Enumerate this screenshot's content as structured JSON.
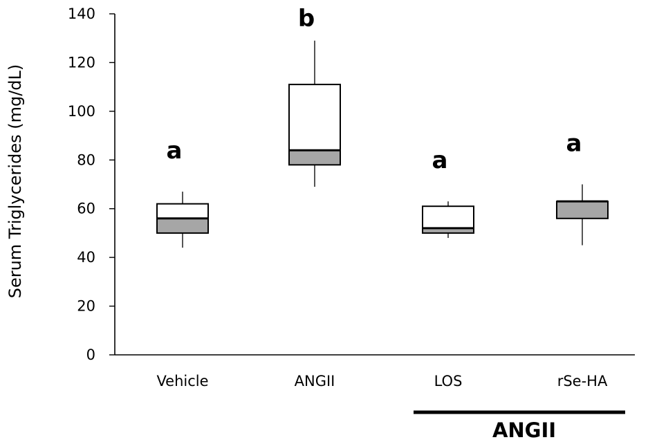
{
  "chart_data": {
    "type": "box",
    "ylabel": "Serum Triglycerides  (mg/dL)",
    "ylim": [
      0,
      140
    ],
    "yticks": [
      0,
      20,
      40,
      60,
      80,
      100,
      120,
      140
    ],
    "grid": false,
    "categories": [
      "Vehicle",
      "ANGII",
      "LOS",
      "rSe-HA"
    ],
    "boxes": [
      {
        "category": "Vehicle",
        "min": 44,
        "q1": 50,
        "median": 56,
        "q3": 62,
        "max": 67,
        "significance": "a"
      },
      {
        "category": "ANGII",
        "min": 69,
        "q1": 78,
        "median": 84,
        "q3": 111,
        "max": 129,
        "significance": "b"
      },
      {
        "category": "LOS",
        "min": 48,
        "q1": 50,
        "median": 52,
        "q3": 61,
        "max": 63,
        "significance": "a"
      },
      {
        "category": "rSe-HA",
        "min": 45,
        "q1": 56,
        "median": 63,
        "q3": 63,
        "max": 70,
        "significance": "a"
      }
    ],
    "group_label": "ANGII",
    "group_categories": [
      "LOS",
      "rSe-HA"
    ]
  }
}
